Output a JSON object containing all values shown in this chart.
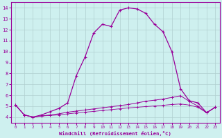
{
  "xlabel": "Windchill (Refroidissement éolien,°C)",
  "bg_color": "#cef0ef",
  "line_color": "#990099",
  "grid_color": "#b0d0d0",
  "xlim": [
    -0.5,
    23.5
  ],
  "ylim": [
    3.5,
    14.5
  ],
  "xticks": [
    0,
    1,
    2,
    3,
    4,
    5,
    6,
    7,
    8,
    9,
    10,
    11,
    12,
    13,
    14,
    15,
    16,
    17,
    18,
    19,
    20,
    21,
    22,
    23
  ],
  "yticks": [
    4,
    5,
    6,
    7,
    8,
    9,
    10,
    11,
    12,
    13,
    14
  ],
  "curve1_x": [
    0,
    1,
    2,
    3,
    4,
    5,
    6,
    7,
    8,
    9,
    10,
    11,
    12,
    13,
    14,
    15,
    16,
    17,
    18,
    19,
    20,
    21,
    22,
    23
  ],
  "curve1_y": [
    5.1,
    4.2,
    4.0,
    4.2,
    4.5,
    4.8,
    5.3,
    7.8,
    9.5,
    11.7,
    12.5,
    12.3,
    13.8,
    14.0,
    13.9,
    13.5,
    12.5,
    11.8,
    10.0,
    6.6,
    5.5,
    5.3,
    4.4,
    4.9
  ],
  "curve2_x": [
    0,
    1,
    2,
    3,
    4,
    5,
    6,
    7,
    8,
    9,
    10,
    11,
    12,
    13,
    14,
    15,
    16,
    17,
    18,
    19,
    20,
    21,
    22,
    23
  ],
  "curve2_y": [
    5.1,
    4.2,
    4.0,
    4.1,
    4.2,
    4.3,
    4.45,
    4.55,
    4.65,
    4.75,
    4.85,
    4.95,
    5.05,
    5.15,
    5.3,
    5.45,
    5.55,
    5.65,
    5.8,
    5.95,
    5.45,
    5.0,
    4.4,
    4.9
  ],
  "curve3_x": [
    0,
    1,
    2,
    3,
    4,
    5,
    6,
    7,
    8,
    9,
    10,
    11,
    12,
    13,
    14,
    15,
    16,
    17,
    18,
    19,
    20,
    21,
    22,
    23
  ],
  "curve3_y": [
    5.1,
    4.2,
    4.0,
    4.1,
    4.15,
    4.2,
    4.3,
    4.38,
    4.45,
    4.52,
    4.6,
    4.68,
    4.76,
    4.84,
    4.9,
    4.96,
    5.02,
    5.08,
    5.15,
    5.2,
    5.1,
    4.9,
    4.4,
    4.9
  ]
}
